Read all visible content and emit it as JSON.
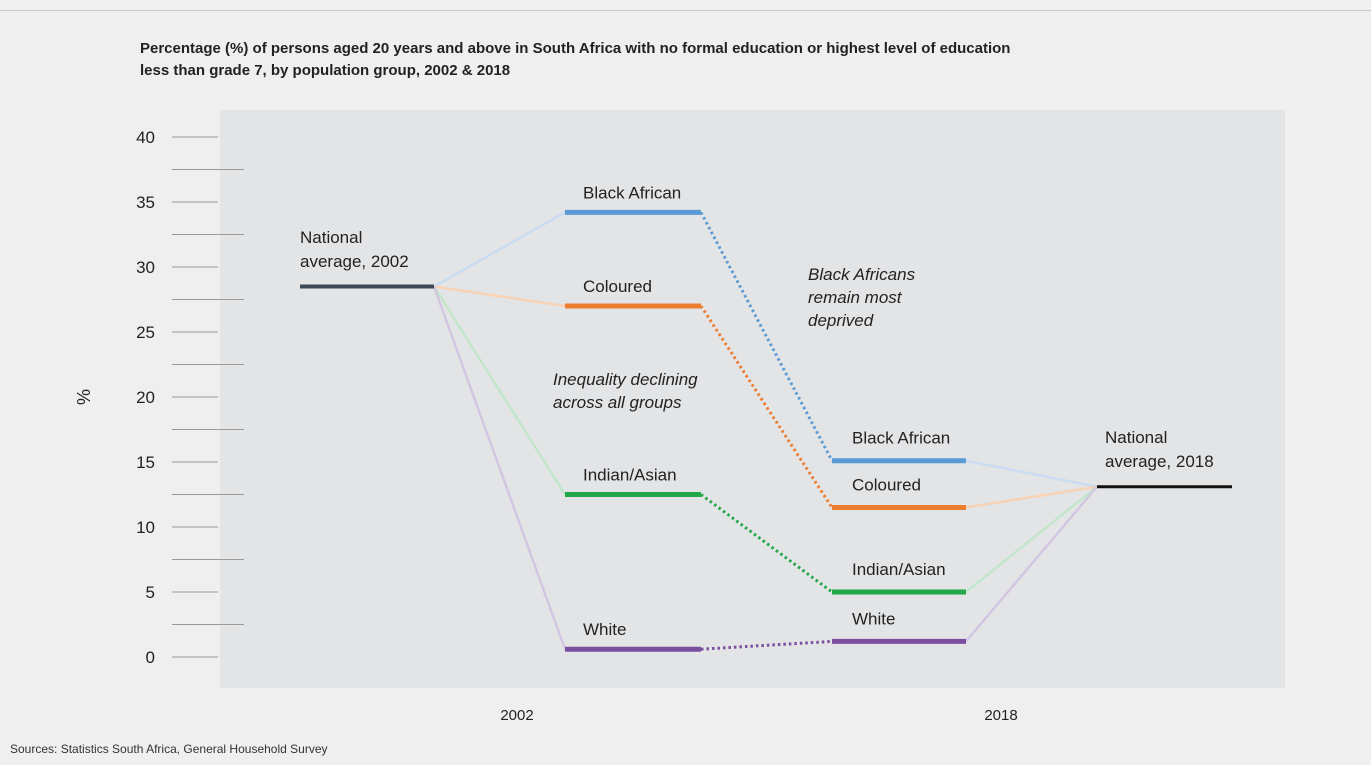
{
  "chart_data": {
    "type": "line",
    "title": "Percentage (%) of persons aged 20 years and above in South Africa with no formal education or highest level of education less than grade 7, by population group, 2002 & 2018",
    "ylabel": "%",
    "ylim": [
      0,
      40
    ],
    "yticks": [
      "0",
      "5",
      "10",
      "15",
      "20",
      "25",
      "30",
      "35",
      "40"
    ],
    "x": [
      "2002",
      "2018"
    ],
    "national_average": {
      "label_2002": "National average, 2002",
      "value_2002": 28.5,
      "label_2018": "National average, 2018",
      "value_2018": 13.1,
      "color": "#3d4a56",
      "color_2018": "#111111"
    },
    "series": [
      {
        "name": "Black African",
        "values": [
          34.2,
          15.1
        ],
        "color": "#5b9bd5",
        "light_color": "#c9dcf2"
      },
      {
        "name": "Coloured",
        "values": [
          27.0,
          11.5
        ],
        "color": "#ed7d31",
        "light_color": "#f8d2b4"
      },
      {
        "name": "Indian/Asian",
        "values": [
          12.5,
          5.0
        ],
        "color": "#22a84a",
        "light_color": "#c2e6cb"
      },
      {
        "name": "White",
        "values": [
          0.6,
          1.2
        ],
        "color": "#7a4fa0",
        "light_color": "#d3c6e2"
      }
    ],
    "annotations": [
      "Black Africans remain most deprived",
      "Inequality declining across all groups"
    ],
    "grid": false
  },
  "source": "Sources: Statistics South Africa, General Household Survey",
  "colors": {
    "plot_background": "#e3e4e6",
    "page_background": "#efefef"
  }
}
